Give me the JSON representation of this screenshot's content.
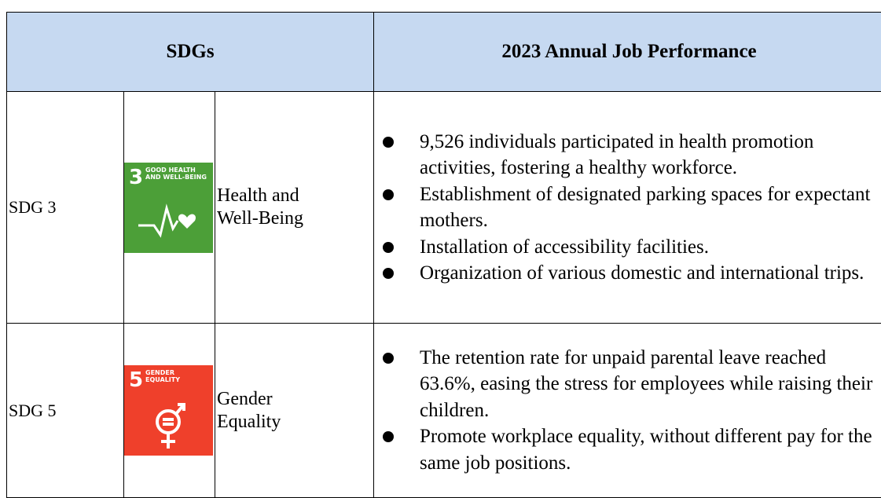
{
  "table": {
    "header": [
      "SDGs",
      "2023 Annual Job Performance"
    ],
    "rows": [
      {
        "sdg": "SDG 3",
        "icon": {
          "number": "3",
          "label": [
            "GOOD HEALTH",
            "AND WELL-BEING"
          ]
        },
        "name": "Health and Well-Being",
        "items": [
          "9,526 individuals participated in health promotion activities, fostering a healthy workforce.",
          "Establishment of designated parking spaces for expectant mothers.",
          "Installation of accessibility facilities.",
          "Organization of various domestic and international trips."
        ]
      },
      {
        "sdg": "SDG 5",
        "icon": {
          "number": "5",
          "label": [
            "GENDER",
            "EQUALITY"
          ]
        },
        "name": "Gender Equality",
        "items": [
          "The retention rate for unpaid parental leave reached 63.6%, easing the stress for employees while raising their children.",
          "Promote workplace equality, without different pay for the same job positions."
        ]
      }
    ]
  }
}
